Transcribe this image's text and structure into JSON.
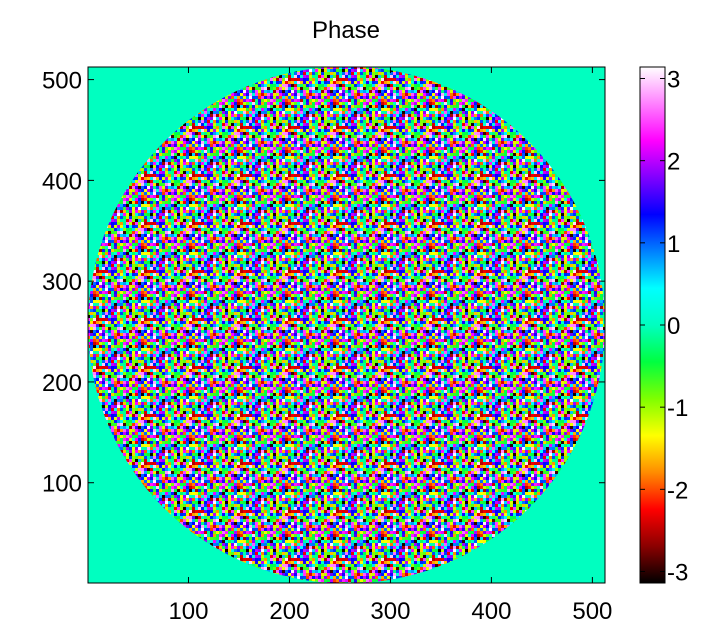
{
  "chart_data": {
    "type": "heatmap",
    "title": "Phase",
    "xlim": [
      0.5,
      512.5
    ],
    "xticks": [
      100,
      200,
      300,
      400,
      500
    ],
    "ylim": [
      0.5,
      512.5
    ],
    "yticks": [
      100,
      200,
      300,
      400,
      500
    ],
    "clim": [
      -3.14,
      3.14
    ],
    "cticks": [
      -3,
      -2,
      -1,
      0,
      1,
      2,
      3
    ],
    "colormap": [
      "#000000",
      "#8b0000",
      "#ff0000",
      "#ff8c00",
      "#ffff00",
      "#7fff00",
      "#00ff40",
      "#00ffc0",
      "#00ffff",
      "#0080ff",
      "#0000ff",
      "#8000ff",
      "#ff00ff",
      "#ff80ff",
      "#ffffff"
    ]
  }
}
